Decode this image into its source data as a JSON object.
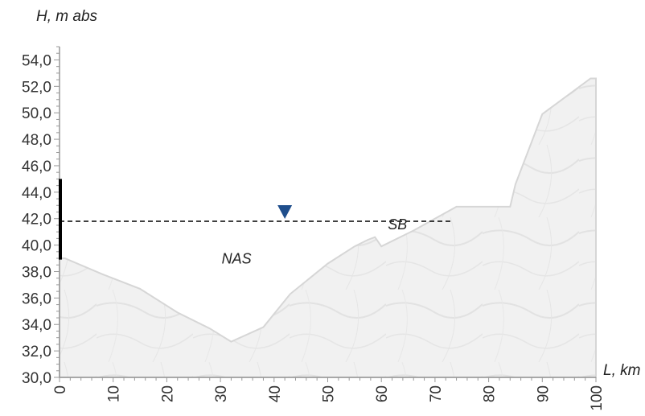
{
  "chart_data": {
    "type": "area",
    "ylabel": "H, m abs",
    "xlabel": "L, km",
    "xlim": [
      0,
      100
    ],
    "ylim": [
      30,
      55
    ],
    "x_ticks": [
      0,
      10,
      20,
      30,
      40,
      50,
      60,
      70,
      80,
      90,
      100
    ],
    "y_ticks": [
      "30,0",
      "32,0",
      "34,0",
      "36,0",
      "38,0",
      "40,0",
      "42,0",
      "44,0",
      "46,0",
      "48,0",
      "50,0",
      "52,0",
      "54,0"
    ],
    "y_tick_values": [
      30,
      32,
      34,
      36,
      38,
      40,
      42,
      44,
      46,
      48,
      50,
      52,
      54
    ],
    "profile": {
      "x": [
        0,
        1,
        8,
        15,
        22,
        28,
        32,
        38,
        43,
        50,
        55,
        57.5,
        58.8,
        60,
        66,
        74,
        75,
        84,
        85,
        90,
        99,
        100
      ],
      "y": [
        39,
        39,
        37.8,
        36.7,
        34.9,
        33.7,
        32.7,
        33.8,
        36.3,
        38.6,
        39.9,
        40.4,
        40.6,
        39.9,
        41.1,
        42.9,
        42.9,
        42.9,
        44.6,
        49.9,
        52.6,
        52.6
      ]
    },
    "water_level": {
      "y": 41.8,
      "x_start": 0,
      "x_end": 73
    },
    "water_marker_x": 42,
    "vertical_bar": {
      "x": 0,
      "y_start": 38.9,
      "y_end": 45
    },
    "annotations": [
      {
        "text": "NAS",
        "x": 33,
        "y": 38.6
      },
      {
        "text": "SB",
        "x": 63,
        "y": 41.2
      }
    ],
    "colors": {
      "terrain_fill": "#f0f0f0",
      "terrain_edge": "#d6d6d6",
      "axis": "#999999",
      "water_line": "#000000",
      "marker": "#1f4e8c",
      "bar": "#000000"
    },
    "grid": false,
    "legend": "none"
  }
}
